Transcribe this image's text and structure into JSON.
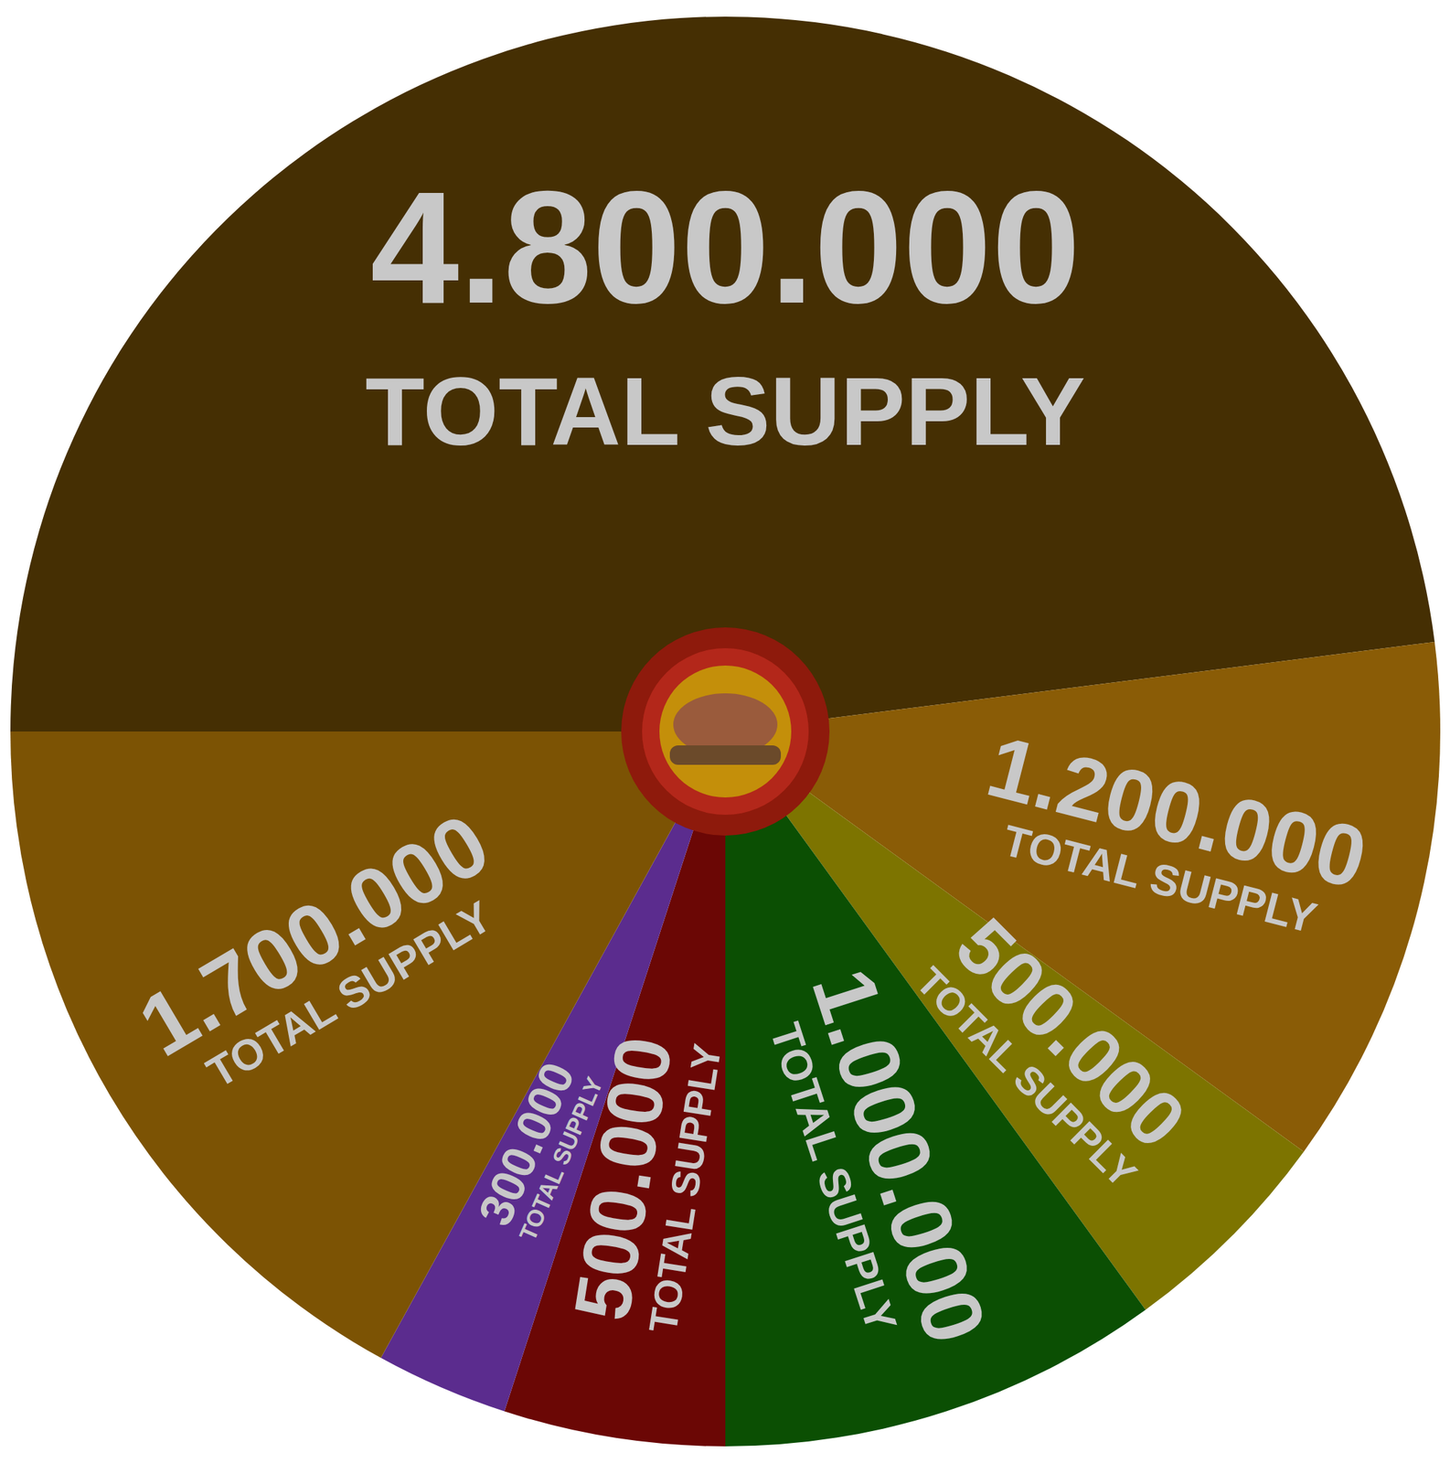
{
  "chart_data": {
    "type": "pie",
    "values": [
      4800000,
      1200000,
      500000,
      1000000,
      500000,
      300000,
      1700000
    ],
    "value_labels": [
      "4.800.000",
      "1.200.000",
      "500.000",
      "1.000.000",
      "500.000",
      "300.000",
      "1.700.000"
    ],
    "colors": [
      "#452f03",
      "#8a5c06",
      "#7d7400",
      "#0b4f03",
      "#6b0705",
      "#5b2c8e",
      "#7c5304"
    ],
    "annotations": [
      "TOTAL SUPPLY",
      "TOTAL SUPPLY",
      "TOTAL SUPPLY",
      "TOTAL SUPPLY",
      "TOTAL SUPPLY",
      "TOTAL SUPPLY",
      "TOTAL SUPPLY"
    ],
    "data_labels": true
  }
}
